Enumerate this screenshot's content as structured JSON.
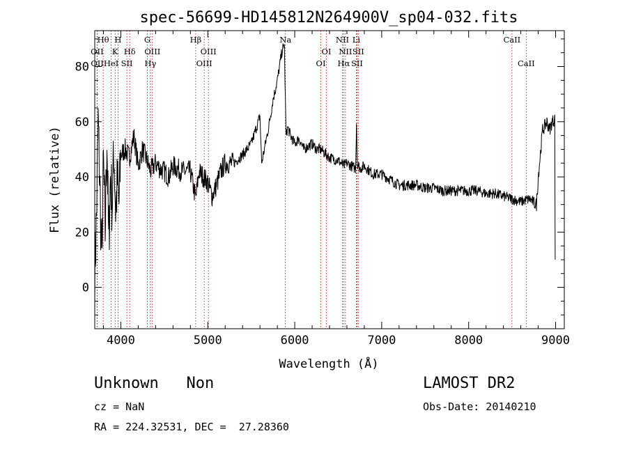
{
  "chart_data": {
    "type": "line",
    "title": "spec-56699-HD145812N264900V_sp04-032.fits",
    "xlabel": "Wavelength (Å)",
    "ylabel": "Flux (relative)",
    "xlim": [
      3700,
      9100
    ],
    "ylim": [
      -15,
      93
    ],
    "xticks": [
      "4000",
      "5000",
      "6000",
      "7000",
      "8000",
      "9000"
    ],
    "yticks": [
      "0",
      "20",
      "40",
      "60",
      "80"
    ],
    "grid": false,
    "series": [
      {
        "x": [
          3700,
          3720,
          3740,
          3760,
          3780,
          3800,
          3820,
          3840,
          3860,
          3880,
          3900,
          3920,
          3940,
          3960,
          3980,
          4000,
          4050,
          4100,
          4150,
          4200,
          4250,
          4300,
          4340,
          4400,
          4450,
          4500,
          4550,
          4600,
          4700,
          4800,
          4861,
          4900,
          4950,
          5000,
          5050,
          5100,
          5150,
          5200,
          5300,
          5400,
          5500,
          5600,
          5620,
          5700,
          5750,
          5800,
          5850,
          5880,
          5900,
          5920,
          5950,
          6000,
          6050,
          6100,
          6150,
          6200,
          6250,
          6300,
          6400,
          6500,
          6563,
          6600,
          6700,
          6710,
          6720,
          6750,
          6800,
          6900,
          7000,
          7100,
          7200,
          7300,
          7400,
          7500,
          7600,
          7700,
          7800,
          7900,
          8000,
          8100,
          8200,
          8300,
          8400,
          8500,
          8600,
          8700,
          8780,
          8800,
          8830,
          8850,
          8870,
          8900,
          8930,
          8960,
          8990,
          8995
        ],
        "y": [
          5,
          25,
          60,
          35,
          10,
          45,
          20,
          55,
          15,
          40,
          30,
          50,
          28,
          38,
          30,
          48,
          50,
          47,
          55,
          44,
          50,
          46,
          42,
          45,
          43,
          42,
          40,
          44,
          42,
          42,
          32,
          42,
          40,
          38,
          33,
          37,
          42,
          45,
          45,
          48,
          52,
          62,
          45,
          58,
          68,
          75,
          85,
          88,
          55,
          58,
          55,
          52,
          54,
          50,
          51,
          52,
          50,
          50,
          47,
          46,
          44,
          45,
          43,
          60,
          45,
          43,
          44,
          41,
          41,
          39,
          37,
          37,
          37,
          36,
          36,
          35,
          35,
          35,
          35,
          35,
          34,
          34,
          33,
          32,
          31,
          32,
          30,
          40,
          50,
          57,
          58,
          60,
          57,
          60,
          61,
          10
        ]
      }
    ],
    "lines": [
      {
        "name": "Hθ",
        "x": 3797,
        "row": 0
      },
      {
        "name": "OII",
        "x": 3727,
        "row": 1
      },
      {
        "name": "OII",
        "x": 3729,
        "row": 2
      },
      {
        "name": "H",
        "x": 3968,
        "row": 0
      },
      {
        "name": "K",
        "x": 3934,
        "row": 1
      },
      {
        "name": "HeI",
        "x": 3889,
        "row": 2
      },
      {
        "name": "Hδ",
        "x": 4102,
        "row": 1
      },
      {
        "name": "SII",
        "x": 4069,
        "row": 2
      },
      {
        "name": "G",
        "x": 4305,
        "row": 0
      },
      {
        "name": "OIII",
        "x": 4363,
        "row": 1
      },
      {
        "name": "Hγ",
        "x": 4340,
        "row": 2
      },
      {
        "name": "Hβ",
        "x": 4861,
        "row": 0
      },
      {
        "name": "OIII",
        "x": 5007,
        "row": 1
      },
      {
        "name": "OIII",
        "x": 4959,
        "row": 2
      },
      {
        "name": "Na",
        "x": 5893,
        "row": 0
      },
      {
        "name": "OI",
        "x": 6364,
        "row": 1
      },
      {
        "name": "OI",
        "x": 6300,
        "row": 2
      },
      {
        "name": "NII",
        "x": 6548,
        "row": 0
      },
      {
        "name": "NII",
        "x": 6583,
        "row": 1
      },
      {
        "name": "Hα",
        "x": 6563,
        "row": 2
      },
      {
        "name": "Li",
        "x": 6708,
        "row": 0
      },
      {
        "name": "SII",
        "x": 6731,
        "row": 1
      },
      {
        "name": "SII",
        "x": 6716,
        "row": 2
      },
      {
        "name": "CaII",
        "x": 8498,
        "row": 0
      },
      {
        "name": "CaII",
        "x": 8662,
        "row": 2
      }
    ]
  },
  "info": {
    "class": "Unknown   Non",
    "survey": "LAMOST DR2",
    "cz": "cz = NaN",
    "obs_date": "Obs-Date: 20140210",
    "radec": "RA = 224.32531, DEC =  27.28360"
  },
  "colors": {
    "axis": "#000000",
    "spectrum": "#000000",
    "line_marker": "#990000"
  }
}
